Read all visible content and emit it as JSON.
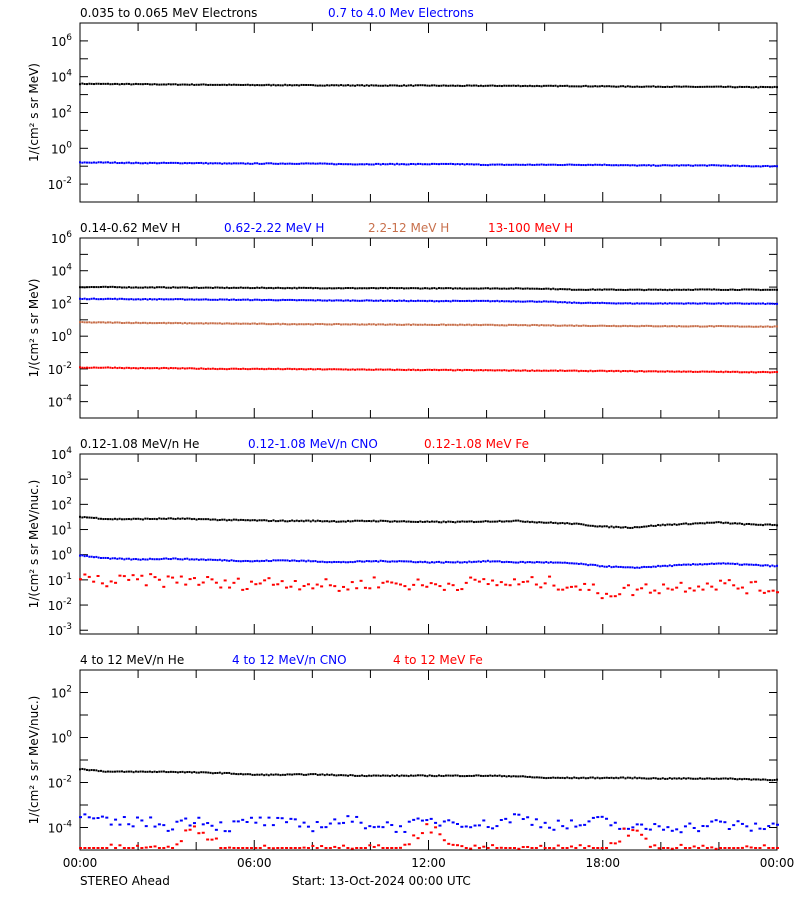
{
  "colors": {
    "black": "#000000",
    "blue": "#0000ff",
    "sienna": "#c8704c",
    "red": "#ff0000"
  },
  "footer": {
    "left": "STEREO Ahead",
    "center": "Start: 13-Oct-2024 00:00 UTC"
  },
  "chart_data": [
    {
      "type": "scatter",
      "ylabel": "1/(cm² s sr MeV)",
      "yscale": "log",
      "ylim_exp": [
        -3,
        7
      ],
      "tick_exponents": [
        -2,
        0,
        2,
        4,
        6
      ],
      "xlim_hours": [
        0,
        24
      ],
      "xticklabels": [
        "00:00",
        "06:00",
        "12:00",
        "18:00",
        "00:00"
      ],
      "series": [
        {
          "name": "0.035 to 0.065 MeV Electrons",
          "color": "#000000",
          "values": [
            4000,
            3900,
            3800,
            3700,
            3600,
            3500,
            3400,
            3400,
            3300,
            3300,
            3200,
            3200,
            3200,
            3100,
            3100,
            3100,
            3000,
            3000,
            2900,
            2800,
            2800,
            2700,
            2700,
            2600,
            2600
          ]
        },
        {
          "name": "0.7 to 4.0 Mev Electrons",
          "color": "#0000ff",
          "values": [
            0.16,
            0.16,
            0.15,
            0.15,
            0.15,
            0.14,
            0.14,
            0.14,
            0.14,
            0.13,
            0.13,
            0.13,
            0.13,
            0.13,
            0.12,
            0.12,
            0.12,
            0.12,
            0.12,
            0.11,
            0.11,
            0.11,
            0.11,
            0.1,
            0.1
          ]
        }
      ]
    },
    {
      "type": "scatter",
      "ylabel": "1/(cm² s sr MeV)",
      "yscale": "log",
      "ylim_exp": [
        -5,
        6
      ],
      "tick_exponents": [
        -4,
        -2,
        0,
        2,
        4,
        6
      ],
      "xlim_hours": [
        0,
        24
      ],
      "series": [
        {
          "name": "0.14-0.62 MeV H",
          "color": "#000000",
          "values": [
            1000,
            1000,
            950,
            950,
            920,
            900,
            900,
            880,
            870,
            860,
            850,
            850,
            840,
            830,
            830,
            820,
            800,
            700,
            700,
            680,
            680,
            700,
            700,
            690,
            680
          ]
        },
        {
          "name": "0.62-2.22 MeV H",
          "color": "#0000ff",
          "values": [
            190,
            190,
            180,
            180,
            175,
            170,
            165,
            160,
            155,
            150,
            150,
            145,
            140,
            140,
            140,
            135,
            130,
            110,
            105,
            100,
            100,
            100,
            100,
            98,
            95
          ]
        },
        {
          "name": "2.2-12 MeV H",
          "color": "#c8704c",
          "values": [
            7,
            6.8,
            6.5,
            6.3,
            6.1,
            5.9,
            5.7,
            5.5,
            5.4,
            5.3,
            5.2,
            5.1,
            5,
            4.9,
            4.8,
            4.7,
            4.6,
            4.4,
            4.3,
            4.2,
            4.1,
            4,
            4,
            3.9,
            3.8
          ]
        },
        {
          "name": "13-100 MeV H",
          "color": "#ff0000",
          "values": [
            0.012,
            0.012,
            0.011,
            0.011,
            0.0105,
            0.01,
            0.01,
            0.0098,
            0.0095,
            0.0093,
            0.009,
            0.0088,
            0.0086,
            0.0084,
            0.0082,
            0.008,
            0.0078,
            0.0076,
            0.0074,
            0.0072,
            0.007,
            0.0068,
            0.0066,
            0.0064,
            0.0062
          ]
        }
      ]
    },
    {
      "type": "scatter",
      "ylabel": "1/(cm² s sr MeV/nuc.)",
      "yscale": "log",
      "ylim_exp": [
        -3.15,
        4
      ],
      "tick_exponents": [
        -3,
        -2,
        -1,
        0,
        1,
        2,
        3,
        4
      ],
      "xlim_hours": [
        0,
        24
      ],
      "series": [
        {
          "name": "0.12-1.08 MeV/n He",
          "color": "#000000",
          "values": [
            32,
            26,
            26,
            27,
            26,
            24,
            23,
            22,
            22,
            21,
            22,
            21,
            20,
            20,
            21,
            22,
            19,
            17,
            13,
            12,
            15,
            17,
            19,
            16,
            15
          ]
        },
        {
          "name": "0.12-1.08 MeV/n CNO",
          "color": "#0000ff",
          "values": [
            0.95,
            0.7,
            0.65,
            0.7,
            0.65,
            0.6,
            0.55,
            0.6,
            0.55,
            0.5,
            0.55,
            0.55,
            0.5,
            0.5,
            0.55,
            0.5,
            0.5,
            0.45,
            0.35,
            0.3,
            0.35,
            0.4,
            0.45,
            0.4,
            0.35
          ]
        },
        {
          "name": "0.12-1.08 MeV Fe",
          "color": "#ff0000",
          "values": [
            0.12,
            0.08,
            0.1,
            0.09,
            0.1,
            0.06,
            0.08,
            0.08,
            0.07,
            0.05,
            0.08,
            0.07,
            0.06,
            0.07,
            0.08,
            0.07,
            0.08,
            0.06,
            0.03,
            0.04,
            0.05,
            0.06,
            0.07,
            0.05,
            0.04
          ]
        }
      ]
    },
    {
      "type": "scatter",
      "ylabel": "1/(cm² s sr MeV/nuc.)",
      "yscale": "log",
      "ylim_exp": [
        -5,
        3
      ],
      "tick_exponents": [
        -4,
        -2,
        0,
        2
      ],
      "xlim_hours": [
        0,
        24
      ],
      "series": [
        {
          "name": "4 to 12 MeV/n He",
          "color": "#000000",
          "values": [
            0.04,
            0.03,
            0.03,
            0.03,
            0.028,
            0.026,
            0.022,
            0.022,
            0.023,
            0.021,
            0.02,
            0.02,
            0.02,
            0.02,
            0.02,
            0.019,
            0.016,
            0.016,
            0.016,
            0.016,
            0.015,
            0.015,
            0.015,
            0.014,
            0.013
          ]
        },
        {
          "name": "4 to 12 MeV/n CNO",
          "color": "#0000ff",
          "values": [
            0.0003,
            0.00015,
            0.0002,
            0.00012,
            0.00025,
            0.0001,
            0.0002,
            0.00015,
            0.00012,
            0.0002,
            0.00015,
            0.0001,
            0.00018,
            0.0002,
            0.00012,
            0.0003,
            0.00015,
            0.00012,
            0.0002,
            8e-05,
            0.00012,
            0.0001,
            0.00015,
            0.0001,
            0.00012
          ]
        },
        {
          "name": "4 to 12 MeV Fe",
          "color": "#ff0000",
          "values": [
            1e-05,
            1e-05,
            1e-05,
            1e-05,
            0.0001,
            1e-05,
            1e-05,
            1e-05,
            1e-05,
            1e-05,
            1e-05,
            1e-05,
            0.0001,
            1e-05,
            1e-05,
            1e-05,
            1e-05,
            1e-05,
            1e-05,
            0.0001,
            1e-05,
            1e-05,
            1e-05,
            1e-05,
            1e-05
          ]
        }
      ]
    }
  ]
}
